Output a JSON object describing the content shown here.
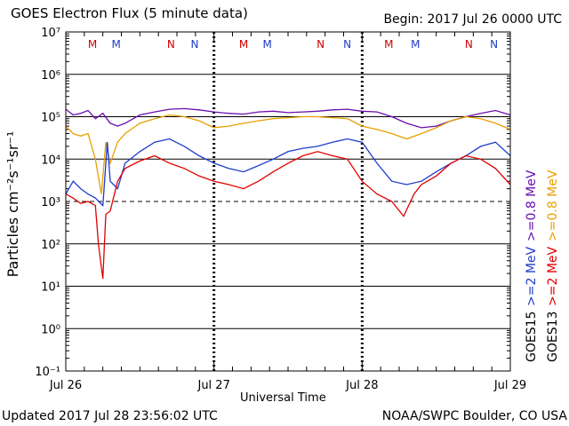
{
  "header": {
    "title": "GOES Electron Flux (5 minute data)",
    "begin": "Begin: 2017 Jul 26 0000 UTC"
  },
  "footer": {
    "updated": "Updated 2017 Jul 28 23:56:02 UTC",
    "credit": "NOAA/SWPC Boulder, CO USA"
  },
  "chart_data": {
    "type": "line",
    "title": "GOES Electron Flux (5 minute data)",
    "xlabel": "Universal Time",
    "ylabel": "Particles cm⁻²s⁻¹sr⁻¹",
    "y_scale": "log",
    "ylim": [
      0.1,
      10000000
    ],
    "y_ticks": [
      "10⁻¹",
      "10⁰",
      "10¹",
      "10²",
      "10³",
      "10⁴",
      "10⁵",
      "10⁶",
      "10⁷"
    ],
    "x_range_days": [
      "2017-07-26",
      "2017-07-29"
    ],
    "x_tick_labels": [
      "Jul 26",
      "Jul 27",
      "Jul 28",
      "Jul 29"
    ],
    "threshold": 1000,
    "grid": "horizontal",
    "markers": [
      {
        "label": "M",
        "day": 0.18,
        "color": "#d00000"
      },
      {
        "label": "M",
        "day": 0.34,
        "color": "#1e3cc8"
      },
      {
        "label": "N",
        "day": 0.71,
        "color": "#d00000"
      },
      {
        "label": "N",
        "day": 0.87,
        "color": "#1e3cc8"
      },
      {
        "label": "M",
        "day": 1.2,
        "color": "#d00000"
      },
      {
        "label": "M",
        "day": 1.36,
        "color": "#1e3cc8"
      },
      {
        "label": "N",
        "day": 1.72,
        "color": "#d00000"
      },
      {
        "label": "N",
        "day": 1.9,
        "color": "#1e3cc8"
      },
      {
        "label": "M",
        "day": 2.18,
        "color": "#d00000"
      },
      {
        "label": "M",
        "day": 2.36,
        "color": "#1e3cc8"
      },
      {
        "label": "N",
        "day": 2.72,
        "color": "#d00000"
      },
      {
        "label": "N",
        "day": 2.89,
        "color": "#1e3cc8"
      }
    ],
    "legend": {
      "labels": [
        {
          "text": ">=0.8 MeV",
          "color": "#6a0dad",
          "group": "goes15"
        },
        {
          "text": ">=2 MeV",
          "color": "#1e3cc8",
          "group": "goes15"
        },
        {
          "text": "GOES15",
          "color": "#000000",
          "group": "goes15"
        },
        {
          "text": ">=0.8 MeV",
          "color": "#e8a000",
          "group": "goes13"
        },
        {
          "text": ">=2 MeV",
          "color": "#e00000",
          "group": "goes13"
        },
        {
          "text": "GOES13",
          "color": "#000000",
          "group": "goes13"
        }
      ]
    },
    "series": [
      {
        "color": "#6a0dad",
        "points": [
          [
            0.0,
            150000
          ],
          [
            0.05,
            110000
          ],
          [
            0.1,
            120000
          ],
          [
            0.15,
            140000
          ],
          [
            0.2,
            90000
          ],
          [
            0.25,
            120000
          ],
          [
            0.3,
            70000
          ],
          [
            0.35,
            60000
          ],
          [
            0.4,
            70000
          ],
          [
            0.5,
            110000
          ],
          [
            0.6,
            130000
          ],
          [
            0.7,
            150000
          ],
          [
            0.8,
            155000
          ],
          [
            0.9,
            145000
          ],
          [
            1.0,
            130000
          ],
          [
            1.1,
            120000
          ],
          [
            1.2,
            115000
          ],
          [
            1.3,
            130000
          ],
          [
            1.4,
            135000
          ],
          [
            1.5,
            125000
          ],
          [
            1.6,
            130000
          ],
          [
            1.7,
            135000
          ],
          [
            1.8,
            145000
          ],
          [
            1.9,
            150000
          ],
          [
            2.0,
            135000
          ],
          [
            2.1,
            130000
          ],
          [
            2.2,
            100000
          ],
          [
            2.3,
            70000
          ],
          [
            2.4,
            55000
          ],
          [
            2.5,
            60000
          ],
          [
            2.6,
            80000
          ],
          [
            2.7,
            100000
          ],
          [
            2.8,
            120000
          ],
          [
            2.9,
            140000
          ],
          [
            3.0,
            110000
          ]
        ]
      },
      {
        "color": "#e8a000",
        "points": [
          [
            0.0,
            60000
          ],
          [
            0.05,
            40000
          ],
          [
            0.1,
            35000
          ],
          [
            0.15,
            40000
          ],
          [
            0.2,
            10000
          ],
          [
            0.24,
            1500
          ],
          [
            0.27,
            25000
          ],
          [
            0.3,
            8000
          ],
          [
            0.35,
            25000
          ],
          [
            0.4,
            40000
          ],
          [
            0.5,
            70000
          ],
          [
            0.6,
            90000
          ],
          [
            0.7,
            110000
          ],
          [
            0.8,
            100000
          ],
          [
            0.9,
            80000
          ],
          [
            1.0,
            55000
          ],
          [
            1.1,
            60000
          ],
          [
            1.2,
            70000
          ],
          [
            1.3,
            80000
          ],
          [
            1.4,
            90000
          ],
          [
            1.5,
            95000
          ],
          [
            1.6,
            100000
          ],
          [
            1.7,
            100000
          ],
          [
            1.8,
            95000
          ],
          [
            1.9,
            90000
          ],
          [
            2.0,
            60000
          ],
          [
            2.1,
            50000
          ],
          [
            2.2,
            40000
          ],
          [
            2.3,
            30000
          ],
          [
            2.4,
            40000
          ],
          [
            2.5,
            55000
          ],
          [
            2.6,
            80000
          ],
          [
            2.7,
            100000
          ],
          [
            2.8,
            90000
          ],
          [
            2.9,
            70000
          ],
          [
            3.0,
            50000
          ]
        ]
      },
      {
        "color": "#1e3cc8",
        "points": [
          [
            0.0,
            1500
          ],
          [
            0.05,
            3000
          ],
          [
            0.1,
            2000
          ],
          [
            0.15,
            1500
          ],
          [
            0.2,
            1200
          ],
          [
            0.25,
            800
          ],
          [
            0.28,
            25000
          ],
          [
            0.3,
            3000
          ],
          [
            0.35,
            2000
          ],
          [
            0.4,
            8000
          ],
          [
            0.5,
            15000
          ],
          [
            0.6,
            25000
          ],
          [
            0.7,
            30000
          ],
          [
            0.8,
            20000
          ],
          [
            0.9,
            12000
          ],
          [
            1.0,
            8000
          ],
          [
            1.1,
            6000
          ],
          [
            1.2,
            5000
          ],
          [
            1.3,
            7000
          ],
          [
            1.4,
            10000
          ],
          [
            1.5,
            15000
          ],
          [
            1.6,
            18000
          ],
          [
            1.7,
            20000
          ],
          [
            1.8,
            25000
          ],
          [
            1.9,
            30000
          ],
          [
            2.0,
            25000
          ],
          [
            2.1,
            8000
          ],
          [
            2.2,
            3000
          ],
          [
            2.3,
            2500
          ],
          [
            2.4,
            3000
          ],
          [
            2.5,
            5000
          ],
          [
            2.6,
            8000
          ],
          [
            2.7,
            12000
          ],
          [
            2.8,
            20000
          ],
          [
            2.9,
            25000
          ],
          [
            3.0,
            12000
          ]
        ]
      },
      {
        "color": "#e00000",
        "points": [
          [
            0.0,
            1500
          ],
          [
            0.05,
            1200
          ],
          [
            0.1,
            900
          ],
          [
            0.15,
            1000
          ],
          [
            0.2,
            800
          ],
          [
            0.22,
            100
          ],
          [
            0.25,
            15
          ],
          [
            0.27,
            500
          ],
          [
            0.3,
            600
          ],
          [
            0.35,
            3000
          ],
          [
            0.4,
            6000
          ],
          [
            0.5,
            9000
          ],
          [
            0.6,
            12000
          ],
          [
            0.7,
            8000
          ],
          [
            0.8,
            6000
          ],
          [
            0.9,
            4000
          ],
          [
            1.0,
            3000
          ],
          [
            1.1,
            2500
          ],
          [
            1.2,
            2000
          ],
          [
            1.3,
            3000
          ],
          [
            1.4,
            5000
          ],
          [
            1.5,
            8000
          ],
          [
            1.6,
            12000
          ],
          [
            1.7,
            15000
          ],
          [
            1.8,
            12000
          ],
          [
            1.9,
            10000
          ],
          [
            2.0,
            3000
          ],
          [
            2.1,
            1500
          ],
          [
            2.2,
            1000
          ],
          [
            2.28,
            450
          ],
          [
            2.35,
            1500
          ],
          [
            2.4,
            2500
          ],
          [
            2.5,
            4000
          ],
          [
            2.6,
            8000
          ],
          [
            2.7,
            12000
          ],
          [
            2.8,
            10000
          ],
          [
            2.9,
            6000
          ],
          [
            3.0,
            2500
          ]
        ]
      }
    ]
  }
}
